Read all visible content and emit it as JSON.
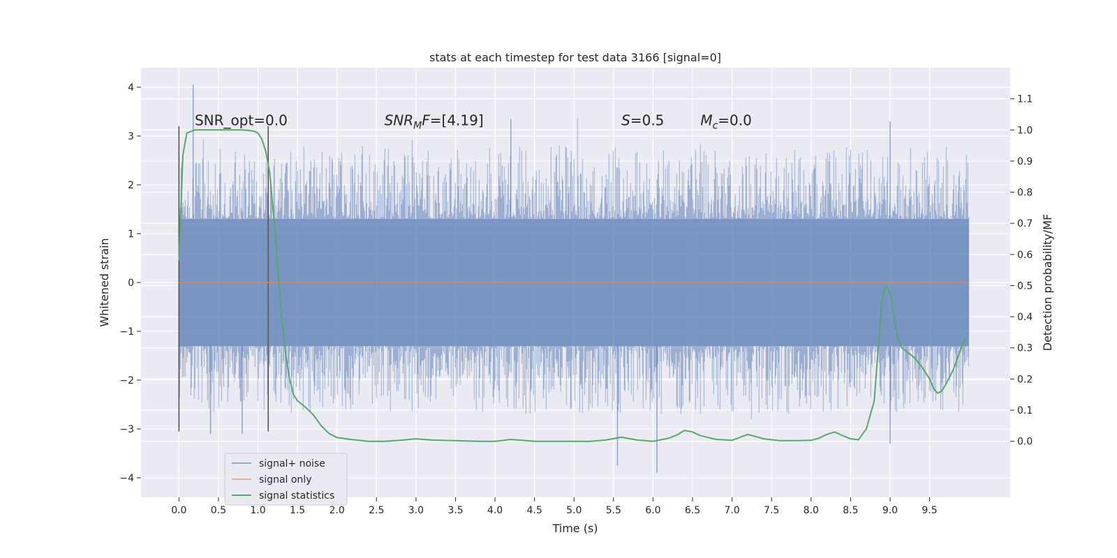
{
  "chart_data": {
    "type": "line",
    "title": "stats at each timestep for test data 3166 [signal=0]",
    "xlabel": "Time (s)",
    "ylabel": "Whitened strain",
    "y2label": "Detection probability/MF",
    "xlim": [
      -0.48,
      10.52
    ],
    "ylim": [
      -4.4,
      4.4
    ],
    "y2lim": [
      -0.18,
      1.2
    ],
    "xticks": [
      "0.0",
      "0.5",
      "1.0",
      "1.5",
      "2.0",
      "2.5",
      "3.0",
      "3.5",
      "4.0",
      "4.5",
      "5.0",
      "5.5",
      "6.0",
      "6.5",
      "7.0",
      "7.5",
      "8.0",
      "8.5",
      "9.0",
      "9.5"
    ],
    "yticks": [
      "4",
      "3",
      "2",
      "1",
      "0",
      "−1",
      "−2",
      "−3",
      "−4"
    ],
    "y2ticks": [
      "1.1",
      "1.0",
      "0.9",
      "0.8",
      "0.7",
      "0.6",
      "0.5",
      "0.4",
      "0.3",
      "0.2",
      "0.1",
      "0.0"
    ],
    "grid": true,
    "legend_position": "lower-left",
    "annotations": [
      {
        "label": "SNR_opt=0.0",
        "x": 0.2,
        "y": 3.22
      },
      {
        "label": "SNRMF=[4.19]",
        "x": 2.6,
        "y": 3.22
      },
      {
        "label": "S=0.5",
        "x": 5.6,
        "y": 3.22
      },
      {
        "label": "Mc=0.0",
        "x": 6.6,
        "y": 3.22
      }
    ],
    "vertical_lines": [
      {
        "x": 0.0,
        "y_from": -3.05,
        "y_to": 3.2
      },
      {
        "x": 1.13,
        "y_from": -3.05,
        "y_to": 3.2
      }
    ],
    "series": [
      {
        "name": "signal+ noise",
        "color": "#4c72b0",
        "kind": "noise",
        "x_range": [
          0.0,
          10.0
        ],
        "core_upper": 1.3,
        "core_lower": -1.3,
        "max": 4.05,
        "min": -3.9
      },
      {
        "name": "signal only",
        "color": "#dd8452",
        "kind": "line",
        "x": [
          0.0,
          10.0
        ],
        "y": [
          0.0,
          0.0
        ]
      },
      {
        "name": "signal statistics",
        "color": "#55a868",
        "kind": "line",
        "axis": "right",
        "x": [
          0.0,
          0.05,
          0.1,
          0.15,
          0.2,
          0.3,
          0.4,
          0.5,
          0.6,
          0.7,
          0.8,
          0.9,
          0.95,
          1.0,
          1.05,
          1.1,
          1.15,
          1.2,
          1.25,
          1.3,
          1.35,
          1.4,
          1.45,
          1.5,
          1.55,
          1.6,
          1.7,
          1.8,
          1.9,
          2.0,
          2.2,
          2.4,
          2.6,
          2.8,
          3.0,
          3.2,
          3.5,
          3.8,
          4.0,
          4.2,
          4.5,
          4.8,
          5.0,
          5.2,
          5.4,
          5.6,
          5.8,
          6.0,
          6.2,
          6.3,
          6.4,
          6.5,
          6.6,
          6.8,
          7.0,
          7.2,
          7.4,
          7.6,
          7.8,
          8.0,
          8.1,
          8.2,
          8.3,
          8.4,
          8.5,
          8.6,
          8.7,
          8.8,
          8.85,
          8.9,
          8.95,
          9.0,
          9.05,
          9.1,
          9.15,
          9.2,
          9.3,
          9.4,
          9.5,
          9.55,
          9.6,
          9.65,
          9.7,
          9.8,
          9.9,
          9.95
        ],
        "y": [
          0.58,
          0.92,
          0.99,
          0.995,
          1.0,
          1.0,
          1.0,
          1.0,
          1.0,
          1.0,
          1.0,
          0.998,
          0.996,
          0.99,
          0.97,
          0.93,
          0.86,
          0.72,
          0.56,
          0.4,
          0.28,
          0.2,
          0.15,
          0.13,
          0.12,
          0.11,
          0.085,
          0.05,
          0.025,
          0.012,
          0.005,
          0.0,
          0.0,
          0.003,
          0.008,
          0.004,
          0.002,
          0.0,
          0.0,
          0.006,
          0.0,
          0.0,
          0.0,
          0.0,
          0.004,
          0.013,
          0.004,
          0.0,
          0.01,
          0.02,
          0.035,
          0.03,
          0.018,
          0.006,
          0.003,
          0.022,
          0.008,
          0.002,
          0.002,
          0.003,
          0.01,
          0.022,
          0.03,
          0.018,
          0.008,
          0.005,
          0.04,
          0.13,
          0.3,
          0.46,
          0.5,
          0.48,
          0.4,
          0.33,
          0.3,
          0.29,
          0.27,
          0.24,
          0.2,
          0.17,
          0.155,
          0.16,
          0.18,
          0.23,
          0.3,
          0.33
        ]
      }
    ]
  }
}
